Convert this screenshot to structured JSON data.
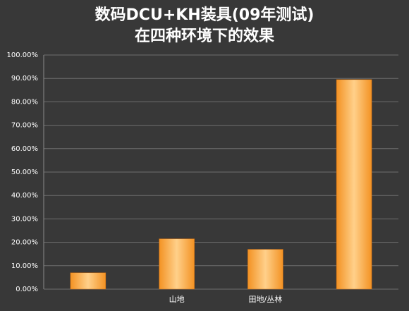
{
  "chart_data": {
    "type": "bar",
    "title": [
      "数码DCU+KH装具(09年测试)",
      "在四种环境下的效果"
    ],
    "categories": [
      null,
      "山地",
      "田地/丛林",
      null
    ],
    "values": [
      7,
      21.5,
      17,
      89.5
    ],
    "color": "#f39223",
    "ylim": [
      0,
      100
    ],
    "yticks": [
      {
        "value": 0,
        "label": "0.00%"
      },
      {
        "value": 10,
        "label": "10.00%"
      },
      {
        "value": 20,
        "label": "20.00%"
      },
      {
        "value": 30,
        "label": "30.00%"
      },
      {
        "value": 40,
        "label": "40.00%"
      },
      {
        "value": 50,
        "label": "50.00%"
      },
      {
        "value": 60,
        "label": "60.00%"
      },
      {
        "value": 70,
        "label": "70.00%"
      },
      {
        "value": 80,
        "label": "80.00%"
      },
      {
        "value": 90,
        "label": "90.00%"
      },
      {
        "value": 100,
        "label": "100.00%"
      }
    ],
    "grid": true
  }
}
